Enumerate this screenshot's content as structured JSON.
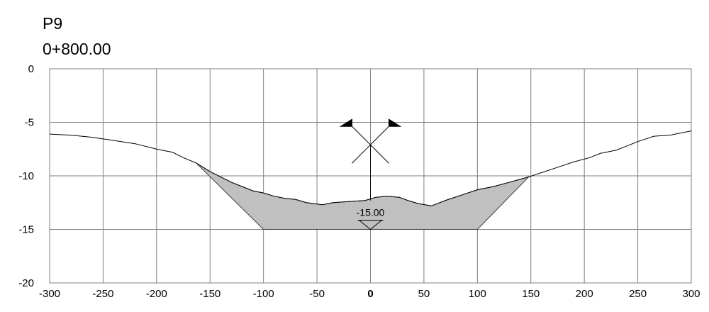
{
  "profile": {
    "name": "P9",
    "station": "0+800.00"
  },
  "chart_data": {
    "type": "area",
    "title": "",
    "xlabel": "",
    "ylabel": "",
    "xlim": [
      -300,
      300
    ],
    "ylim": [
      -20,
      0
    ],
    "x_ticks": [
      -300,
      -250,
      -200,
      -150,
      -100,
      -50,
      0,
      50,
      100,
      150,
      200,
      250,
      300
    ],
    "y_ticks": [
      0,
      -5,
      -10,
      -15,
      -20
    ],
    "grid": true,
    "ground_line": [
      [
        -300,
        -6.1
      ],
      [
        -280,
        -6.2
      ],
      [
        -260,
        -6.4
      ],
      [
        -240,
        -6.7
      ],
      [
        -220,
        -7.0
      ],
      [
        -200,
        -7.5
      ],
      [
        -185,
        -7.8
      ],
      [
        -175,
        -8.3
      ],
      [
        -163,
        -8.8
      ],
      [
        -150,
        -9.6
      ],
      [
        -140,
        -10.1
      ],
      [
        -130,
        -10.6
      ],
      [
        -120,
        -11.0
      ],
      [
        -110,
        -11.4
      ],
      [
        -100,
        -11.6
      ],
      [
        -90,
        -11.9
      ],
      [
        -80,
        -12.1
      ],
      [
        -70,
        -12.2
      ],
      [
        -60,
        -12.5
      ],
      [
        -45,
        -12.7
      ],
      [
        -35,
        -12.5
      ],
      [
        -20,
        -12.4
      ],
      [
        -5,
        -12.3
      ],
      [
        5,
        -12.0
      ],
      [
        15,
        -11.9
      ],
      [
        27,
        -12.0
      ],
      [
        35,
        -12.3
      ],
      [
        45,
        -12.6
      ],
      [
        57,
        -12.8
      ],
      [
        70,
        -12.3
      ],
      [
        85,
        -11.8
      ],
      [
        100,
        -11.3
      ],
      [
        115,
        -11.0
      ],
      [
        130,
        -10.6
      ],
      [
        148,
        -10.1
      ],
      [
        160,
        -9.7
      ],
      [
        175,
        -9.2
      ],
      [
        190,
        -8.7
      ],
      [
        205,
        -8.3
      ],
      [
        215,
        -7.9
      ],
      [
        230,
        -7.6
      ],
      [
        250,
        -6.8
      ],
      [
        265,
        -6.3
      ],
      [
        280,
        -6.2
      ],
      [
        300,
        -5.8
      ]
    ],
    "design_section": {
      "bottom_level": -15.0,
      "bottom_width": [
        -100,
        100
      ],
      "left_catch": [
        -163,
        -8.8
      ],
      "right_catch": [
        148,
        -10.1
      ]
    },
    "centerline": {
      "x": 0,
      "top": -5.3,
      "bottom": -12.3
    },
    "level_label": "-15.00"
  }
}
